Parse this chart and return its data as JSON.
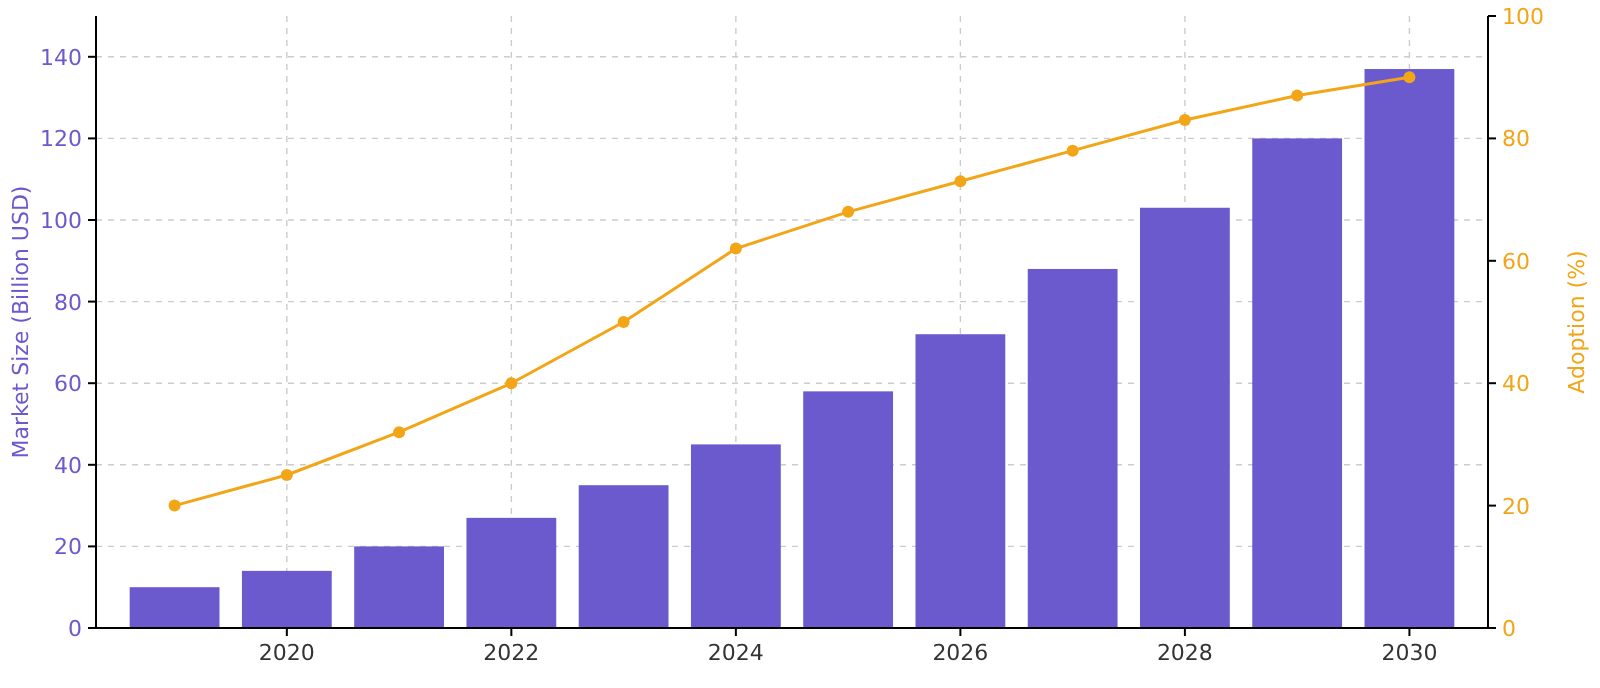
{
  "chart_data": {
    "type": "bar",
    "x": [
      2019,
      2020,
      2021,
      2022,
      2023,
      2024,
      2025,
      2026,
      2027,
      2028,
      2029,
      2030
    ],
    "xlim": [
      2018.3,
      2030.7
    ],
    "xticks": [
      2020,
      2022,
      2024,
      2026,
      2028,
      2030
    ],
    "ylabel": "Market Size (Billion USD)",
    "y2label": "Adoption (%)",
    "ylim": [
      0,
      150
    ],
    "yticks": [
      0,
      20,
      40,
      60,
      80,
      100,
      120,
      140
    ],
    "y2lim": [
      0,
      100
    ],
    "y2ticks": [
      0,
      20,
      40,
      60,
      80,
      100
    ],
    "grid": true,
    "marker": "circle",
    "line_style": "solid",
    "series": [
      {
        "color": "#6a5acd",
        "values": [
          10,
          14,
          20,
          27,
          35,
          45,
          58,
          72,
          88,
          103,
          120,
          137
        ]
      },
      {
        "type": "line",
        "axis": "y2",
        "color": "#f2a516",
        "values": [
          20,
          25,
          32,
          40,
          50,
          62,
          68,
          73,
          78,
          83,
          87,
          90
        ]
      }
    ]
  }
}
